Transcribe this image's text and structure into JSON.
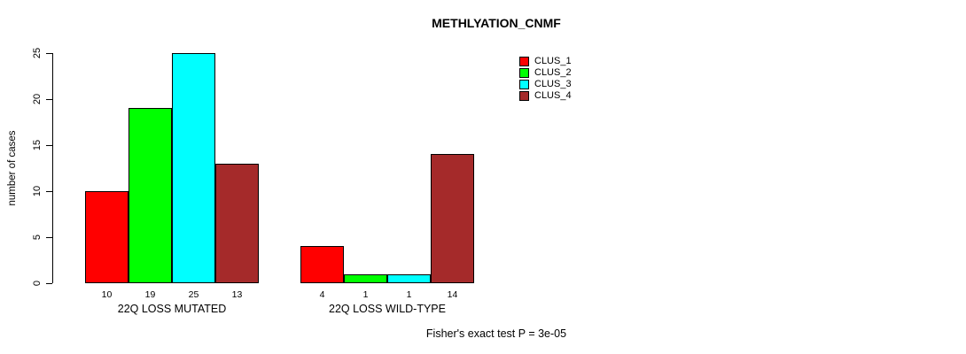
{
  "title": "METHLYATION_CNMF",
  "chart_data": {
    "type": "bar",
    "title": "METHLYATION_CNMF",
    "ylabel": "number of cases",
    "xlabel": "",
    "ylim": [
      0,
      25
    ],
    "yticks": [
      0,
      5,
      10,
      15,
      20,
      25
    ],
    "grid": false,
    "legend_position": "top-right",
    "categories": [
      "22Q LOSS MUTATED",
      "22Q LOSS WILD-TYPE"
    ],
    "series": [
      {
        "name": "CLUS_1",
        "color": "#FF0000",
        "values": [
          10,
          4
        ]
      },
      {
        "name": "CLUS_2",
        "color": "#00FF00",
        "values": [
          19,
          1
        ]
      },
      {
        "name": "CLUS_3",
        "color": "#00FFFF",
        "values": [
          25,
          1
        ]
      },
      {
        "name": "CLUS_4",
        "color": "#A52A2A",
        "values": [
          13,
          14
        ]
      }
    ],
    "bar_value_labels": [
      [
        10,
        19,
        25,
        13
      ],
      [
        4,
        1,
        1,
        14
      ]
    ],
    "caption": "Fisher's exact test P = 3e-05"
  }
}
